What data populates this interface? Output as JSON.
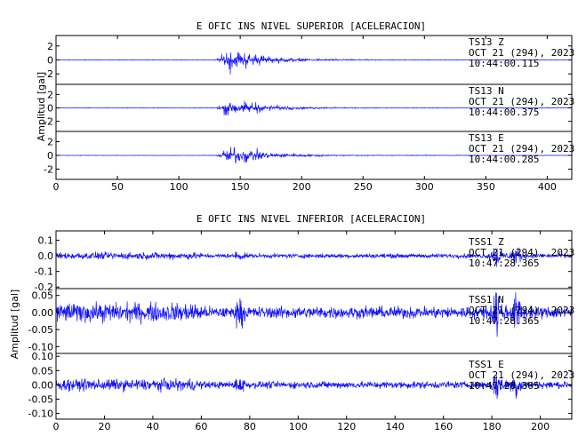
{
  "colors": {
    "trace": "#1010ff",
    "frame": "#000000",
    "background": "#ffffff"
  },
  "chart_data": [
    {
      "type": "line",
      "title": "E OFIC INS NIVEL SUPERIOR [ACELERACION]",
      "ylabel": "Amplitud [gal]",
      "xlim": [
        0,
        420
      ],
      "x_ticks": [
        0,
        50,
        100,
        150,
        200,
        250,
        300,
        350,
        400
      ],
      "event_onset": 130,
      "event_peak": 142,
      "grid": false,
      "panels": [
        {
          "name": "TS13 Z",
          "station": "TS13",
          "component": "Z",
          "date": "OCT 21 (294), 2023",
          "time": "10:44:00.115",
          "ylim": [
            -3.5,
            3.5
          ],
          "y_ticks": [
            2,
            0,
            -2
          ],
          "peak_amplitude": 3.0,
          "noise_amplitude": 0.08
        },
        {
          "name": "TS13 N",
          "station": "TS13",
          "component": "N",
          "date": "OCT 21 (294), 2023",
          "time": "10:44:00.375",
          "ylim": [
            -3.5,
            3.5
          ],
          "y_ticks": [
            2,
            0,
            -2
          ],
          "peak_amplitude": 2.4,
          "noise_amplitude": 0.08
        },
        {
          "name": "TS13 E",
          "station": "TS13",
          "component": "E",
          "date": "OCT 21 (294), 2023",
          "time": "10:44:00.285",
          "ylim": [
            -3.5,
            3.5
          ],
          "y_ticks": [
            2,
            0,
            -2
          ],
          "peak_amplitude": 2.6,
          "noise_amplitude": 0.08
        }
      ]
    },
    {
      "type": "line",
      "title": "E OFIC INS NIVEL INFERIOR [ACELERACION]",
      "ylabel": "Amplitud [gal]",
      "xlim": [
        0,
        213
      ],
      "x_ticks": [
        0,
        20,
        40,
        60,
        80,
        100,
        120,
        140,
        160,
        180,
        200
      ],
      "spikes": [
        182,
        190
      ],
      "grid": false,
      "panels": [
        {
          "name": "TSS1 Z",
          "station": "TSS1",
          "component": "Z",
          "date": "OCT 21 (294), 2023",
          "time": "10:47:28.365",
          "ylim": [
            -0.21,
            0.16
          ],
          "y_ticks": [
            0.1,
            0.0,
            -0.1,
            -0.2
          ],
          "y_tick_labels": [
            "0.1",
            "0.0",
            "-0.1",
            "-0.2"
          ],
          "noise_amplitude": 0.02,
          "spike_amplitude": 0.13
        },
        {
          "name": "TSS1 N",
          "station": "TSS1",
          "component": "N",
          "date": "OCT 21 (294), 2023",
          "time": "10:47:28.365",
          "ylim": [
            -0.12,
            0.07
          ],
          "y_ticks": [
            0.05,
            0.0,
            -0.05,
            -0.1
          ],
          "y_tick_labels": [
            "0.05",
            "0.00",
            "-0.05",
            "-0.10"
          ],
          "noise_amplitude": 0.025,
          "spike_amplitude": 0.09
        },
        {
          "name": "TSS1 E",
          "station": "TSS1",
          "component": "E",
          "date": "OCT 21 (294), 2023",
          "time": "10:47:28.365",
          "ylim": [
            -0.12,
            0.11
          ],
          "y_ticks": [
            0.1,
            0.05,
            0.0,
            -0.05,
            -0.1
          ],
          "y_tick_labels": [
            "0.10",
            "0.05",
            "0.00",
            "-0.05",
            "-0.10"
          ],
          "noise_amplitude": 0.018,
          "spike_amplitude": 0.08
        }
      ]
    }
  ]
}
